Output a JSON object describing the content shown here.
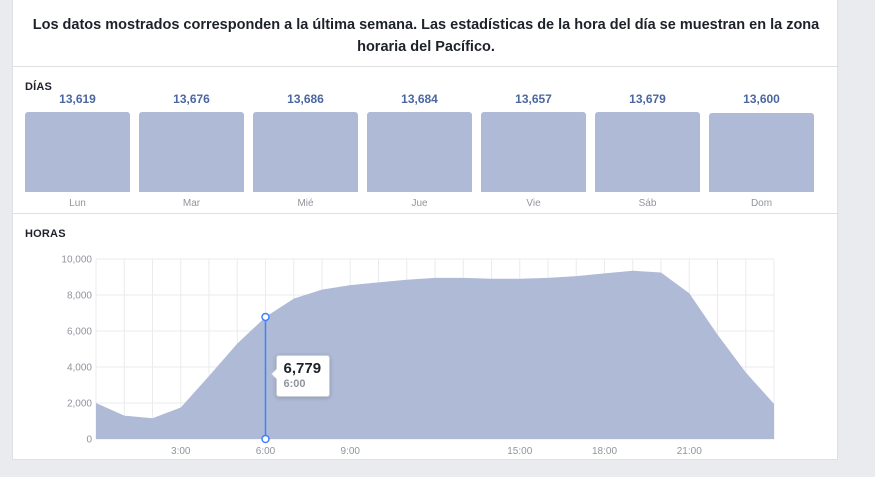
{
  "notice": "Los datos mostrados corresponden a la última semana. Las estadísticas de la hora del día se muestran en la zona horaria del Pacífico.",
  "colors": {
    "bar": "#aebad6",
    "value": "#4b67a1",
    "area": "#aebad6",
    "marker": "#4080ff"
  },
  "chart_data": [
    {
      "type": "bar",
      "title": "DÍAS",
      "categories": [
        "Lun",
        "Mar",
        "Mié",
        "Jue",
        "Vie",
        "Sáb",
        "Dom"
      ],
      "values": [
        13619,
        13676,
        13686,
        13684,
        13657,
        13679,
        13600
      ],
      "value_labels": [
        "13,619",
        "13,676",
        "13,686",
        "13,684",
        "13,657",
        "13,679",
        "13,600"
      ]
    },
    {
      "type": "area",
      "title": "HORAS",
      "x": [
        0,
        1,
        2,
        3,
        4,
        5,
        6,
        7,
        8,
        9,
        10,
        11,
        12,
        13,
        14,
        15,
        16,
        17,
        18,
        19,
        20,
        21,
        22,
        23,
        24
      ],
      "values": [
        2000,
        1300,
        1150,
        1750,
        3500,
        5300,
        6779,
        7800,
        8300,
        8550,
        8700,
        8850,
        8950,
        8950,
        8900,
        8900,
        8950,
        9050,
        9200,
        9350,
        9250,
        8100,
        5800,
        3700,
        1950
      ],
      "xlim": [
        0,
        24
      ],
      "ylim": [
        0,
        10000
      ],
      "x_ticks": [
        {
          "x": 3,
          "label": "3:00"
        },
        {
          "x": 6,
          "label": "6:00"
        },
        {
          "x": 9,
          "label": "9:00"
        },
        {
          "x": 15,
          "label": "15:00"
        },
        {
          "x": 18,
          "label": "18:00"
        },
        {
          "x": 21,
          "label": "21:00"
        }
      ],
      "y_ticks": [
        {
          "y": 0,
          "label": "0"
        },
        {
          "y": 2000,
          "label": "2,000"
        },
        {
          "y": 4000,
          "label": "4,000"
        },
        {
          "y": 6000,
          "label": "6,000"
        },
        {
          "y": 8000,
          "label": "8,000"
        },
        {
          "y": 10000,
          "label": "10,000"
        }
      ],
      "grid": true,
      "highlight": {
        "x": 6,
        "value": 6779,
        "value_label": "6,779",
        "time_label": "6:00"
      }
    }
  ]
}
